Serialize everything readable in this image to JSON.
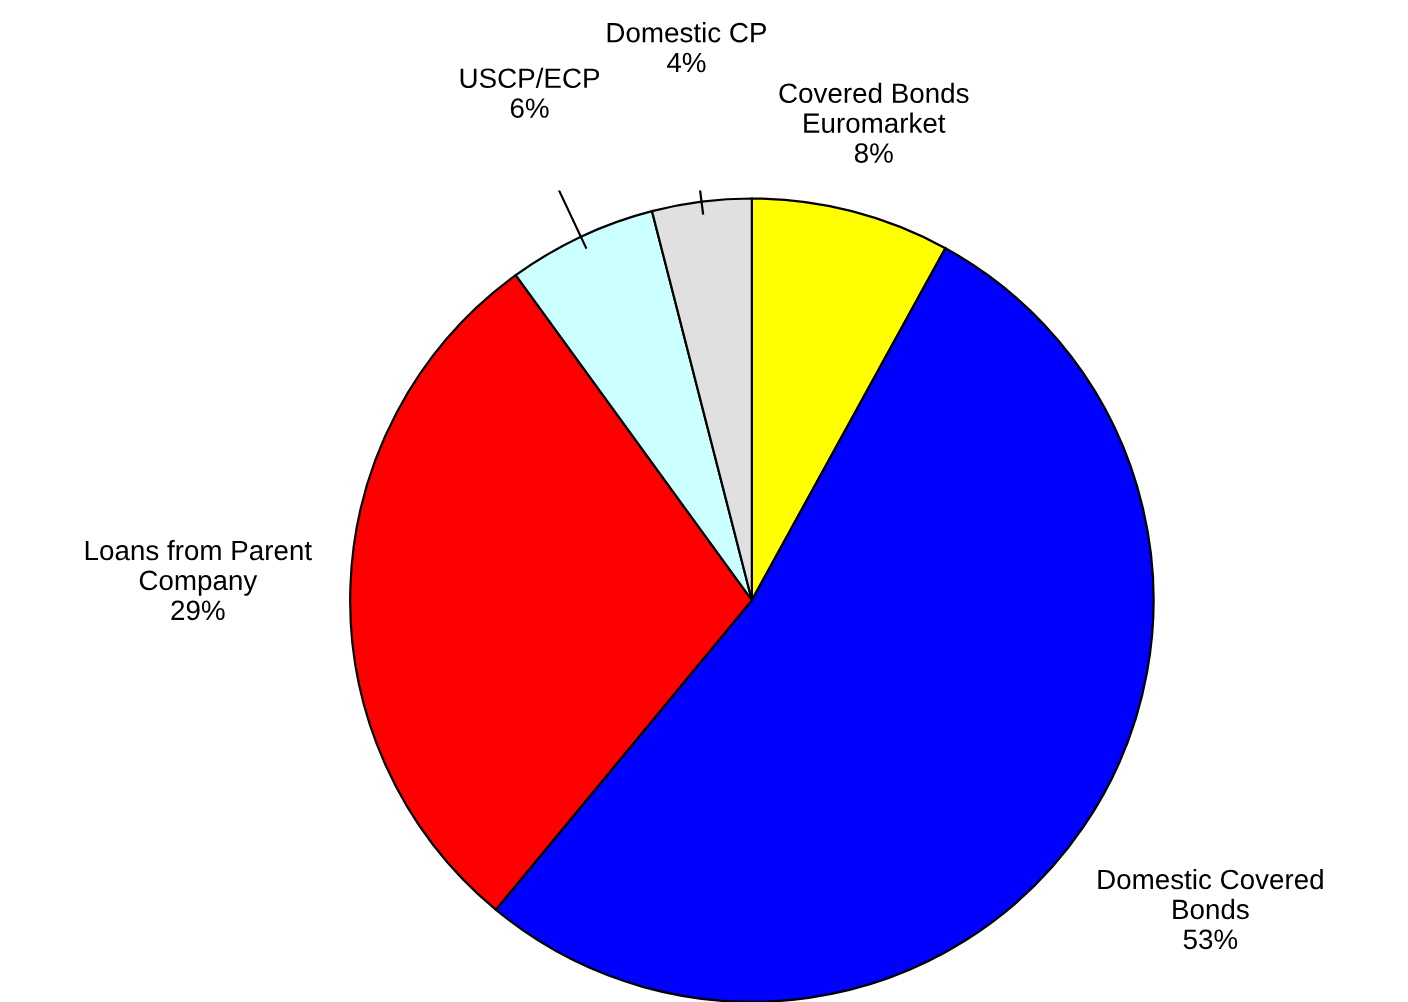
{
  "chart_data": {
    "type": "pie",
    "categories": [
      "Covered Bonds\nEuromarket",
      "Domestic Covered\nBonds",
      "Loans from Parent\nCompany",
      "USCP/ECP",
      "Domestic CP"
    ],
    "values": [
      8,
      53,
      29,
      6,
      4
    ],
    "value_labels": [
      "8%",
      "53%",
      "29%",
      "6%",
      "4%"
    ],
    "colors": [
      "#ffff00",
      "#0000ff",
      "#ff0000",
      "#ccffff",
      "#e0e0e0"
    ],
    "legend": false
  }
}
